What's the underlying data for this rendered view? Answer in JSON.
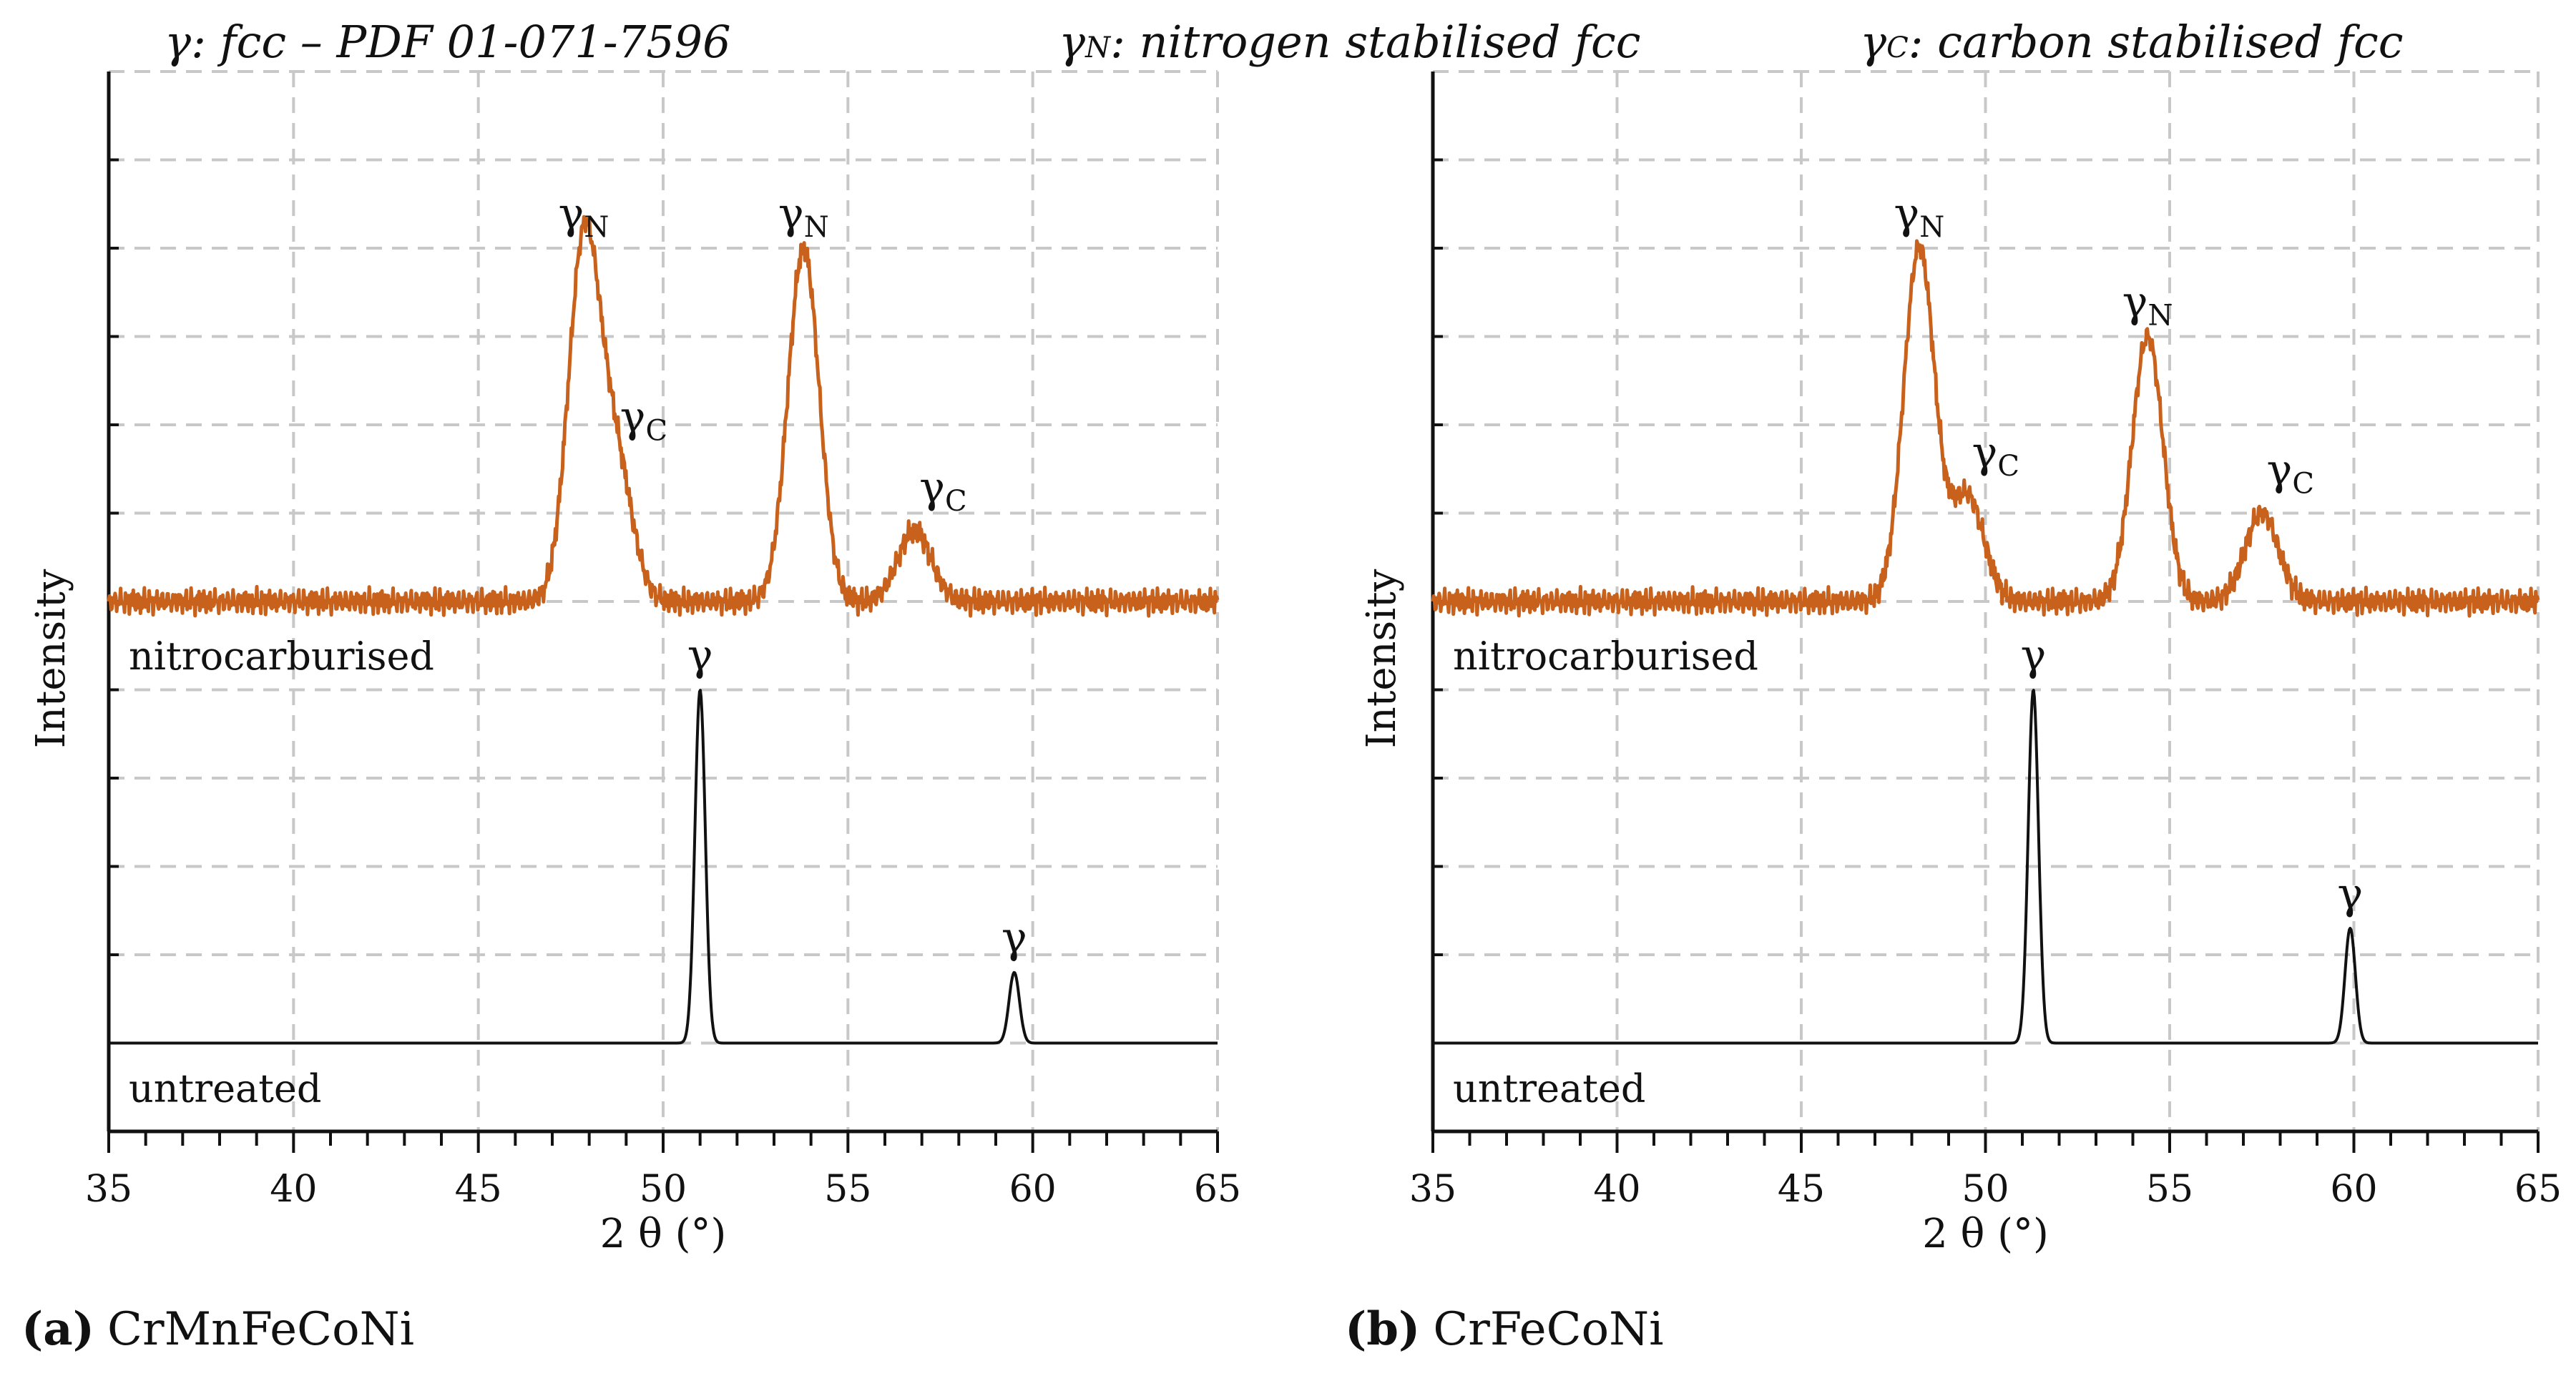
{
  "legend": {
    "items": [
      {
        "symbol": "γ",
        "sub": "",
        "text": ": fcc – PDF 01-071-7596"
      },
      {
        "symbol": "γ",
        "sub": "N",
        "text": ": nitrogen stabilised fcc"
      },
      {
        "symbol": "γ",
        "sub": "C",
        "text": ": carbon stabilised fcc"
      }
    ]
  },
  "colors": {
    "nitrocarburised": "#c8611c",
    "untreated": "#111111",
    "grid": "#c8c8c8"
  },
  "chart_data": [
    {
      "type": "line",
      "caption_label": "(a)",
      "caption_text": "CrMnFeCoNi",
      "xlabel": "2 θ (°)",
      "ylabel": "Intensity",
      "xlim": [
        35,
        65
      ],
      "ylim": [
        0,
        12
      ],
      "xticks": [
        35,
        40,
        45,
        50,
        55,
        60,
        65
      ],
      "grid": true,
      "series": [
        {
          "name": "nitrocarburised",
          "baseline": 6,
          "peaks": [
            {
              "x": 47.85,
              "y": 4.0,
              "label": "γ",
              "sub": "N"
            },
            {
              "x": 48.7,
              "y": 1.6,
              "label": "γ",
              "sub": "C"
            },
            {
              "x": 53.8,
              "y": 4.0,
              "label": "γ",
              "sub": "N"
            },
            {
              "x": 56.8,
              "y": 0.8,
              "label": "γ",
              "sub": "C"
            }
          ]
        },
        {
          "name": "untreated",
          "baseline": 1,
          "peaks": [
            {
              "x": 51.0,
              "y": 4.0,
              "label": "γ",
              "sub": ""
            },
            {
              "x": 59.5,
              "y": 0.8,
              "label": "γ",
              "sub": ""
            }
          ]
        }
      ]
    },
    {
      "type": "line",
      "caption_label": "(b)",
      "caption_text": "CrFeCoNi",
      "xlabel": "2 θ (°)",
      "ylabel": "Intensity",
      "xlim": [
        35,
        65
      ],
      "ylim": [
        0,
        12
      ],
      "xticks": [
        35,
        40,
        45,
        50,
        55,
        60,
        65
      ],
      "grid": true,
      "series": [
        {
          "name": "nitrocarburised",
          "baseline": 6,
          "peaks": [
            {
              "x": 48.2,
              "y": 4.0,
              "label": "γ",
              "sub": "N"
            },
            {
              "x": 49.5,
              "y": 1.2,
              "label": "γ",
              "sub": "C"
            },
            {
              "x": 54.4,
              "y": 3.0,
              "label": "γ",
              "sub": "N"
            },
            {
              "x": 57.5,
              "y": 1.0,
              "label": "γ",
              "sub": "C"
            }
          ]
        },
        {
          "name": "untreated",
          "baseline": 1,
          "peaks": [
            {
              "x": 51.3,
              "y": 4.0,
              "label": "γ",
              "sub": ""
            },
            {
              "x": 59.9,
              "y": 1.3,
              "label": "γ",
              "sub": ""
            }
          ]
        }
      ]
    }
  ]
}
